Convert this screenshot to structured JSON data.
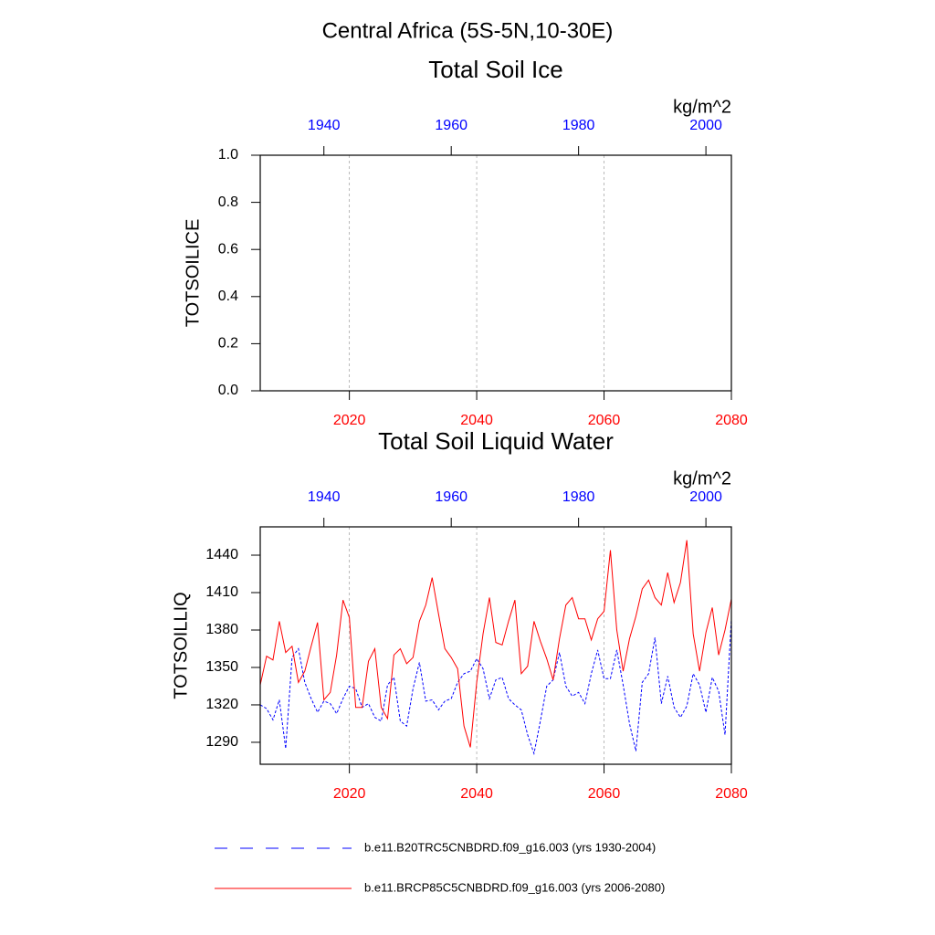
{
  "title": "Central Africa (5S-5N,10-30E)",
  "chart_data": [
    {
      "type": "line",
      "title": "Total Soil Ice",
      "units": "kg/m^2",
      "y_label": "TOTSOILICE",
      "xlim": [
        2006,
        2080
      ],
      "xticks": [
        2020,
        2040,
        2060,
        2080
      ],
      "xtick_color": "#ff0000",
      "x2lim": [
        1930,
        2004
      ],
      "x2ticks": [
        1940,
        1960,
        1980,
        2000
      ],
      "x2tick_color": "#0000ff",
      "ylim": [
        0,
        1
      ],
      "yticks": [
        {
          "value": 0,
          "label": "0.0"
        },
        {
          "value": 0.2,
          "label": "0.2"
        },
        {
          "value": 0.4,
          "label": "0.4"
        },
        {
          "value": 0.6,
          "label": "0.6"
        },
        {
          "value": 0.8,
          "label": "0.8"
        },
        {
          "value": 1,
          "label": "1.0"
        }
      ],
      "grid": true,
      "series": []
    },
    {
      "type": "line",
      "title": "Total Soil Liquid Water",
      "units": "kg/m^2",
      "y_label": "TOTSOILLIQ",
      "xlim": [
        2006,
        2080
      ],
      "xticks": [
        2020,
        2040,
        2060,
        2080
      ],
      "xtick_color": "#ff0000",
      "x2lim": [
        1930,
        2004
      ],
      "x2ticks": [
        1940,
        1960,
        1980,
        2000
      ],
      "x2tick_color": "#0000ff",
      "ylim": [
        1272.4,
        1462.7
      ],
      "yticks": [
        1290,
        1320,
        1350,
        1380,
        1410,
        1440
      ],
      "grid": true,
      "series": [
        {
          "name": "b.e11.B20TRC5CNBDRD.f09_g16.003 (yrs 1930-2004)",
          "color": "#0000ff",
          "dash": true,
          "axis": "x2",
          "x": [
            1930,
            1931,
            1932,
            1933,
            1934,
            1935,
            1936,
            1937,
            1938,
            1939,
            1940,
            1941,
            1942,
            1943,
            1944,
            1945,
            1946,
            1947,
            1948,
            1949,
            1950,
            1951,
            1952,
            1953,
            1954,
            1955,
            1956,
            1957,
            1958,
            1959,
            1960,
            1961,
            1962,
            1963,
            1964,
            1965,
            1966,
            1967,
            1968,
            1969,
            1970,
            1971,
            1972,
            1973,
            1974,
            1975,
            1976,
            1977,
            1978,
            1979,
            1980,
            1981,
            1982,
            1983,
            1984,
            1985,
            1986,
            1987,
            1988,
            1989,
            1990,
            1991,
            1992,
            1993,
            1994,
            1995,
            1996,
            1997,
            1998,
            1999,
            2000,
            2001,
            2002,
            2003,
            2004
          ],
          "values": [
            1320,
            1317,
            1308,
            1324,
            1285,
            1358,
            1365,
            1338,
            1325,
            1314,
            1323,
            1321,
            1313,
            1325,
            1335,
            1333,
            1318,
            1321,
            1310,
            1307,
            1336,
            1342,
            1307,
            1303,
            1333,
            1354,
            1323,
            1324,
            1316,
            1323,
            1325,
            1338,
            1345,
            1347,
            1357,
            1349,
            1325,
            1340,
            1342,
            1325,
            1320,
            1316,
            1296,
            1281,
            1307,
            1335,
            1340,
            1362,
            1335,
            1327,
            1330,
            1321,
            1345,
            1364,
            1341,
            1341,
            1364,
            1336,
            1305,
            1283,
            1338,
            1345,
            1374,
            1321,
            1343,
            1318,
            1310,
            1319,
            1345,
            1336,
            1314,
            1342,
            1331,
            1296,
            1389
          ]
        },
        {
          "name": "b.e11.BRCP85C5CNBDRD.f09_g16.003 (yrs 2006-2080)",
          "color": "#ff0000",
          "dash": false,
          "x": [
            2006,
            2007,
            2008,
            2009,
            2010,
            2011,
            2012,
            2013,
            2014,
            2015,
            2016,
            2017,
            2018,
            2019,
            2020,
            2021,
            2022,
            2023,
            2024,
            2025,
            2026,
            2027,
            2028,
            2029,
            2030,
            2031,
            2032,
            2033,
            2034,
            2035,
            2036,
            2037,
            2038,
            2039,
            2040,
            2041,
            2042,
            2043,
            2044,
            2045,
            2046,
            2047,
            2048,
            2049,
            2050,
            2051,
            2052,
            2053,
            2054,
            2055,
            2056,
            2057,
            2058,
            2059,
            2060,
            2061,
            2062,
            2063,
            2064,
            2065,
            2066,
            2067,
            2068,
            2069,
            2070,
            2071,
            2072,
            2073,
            2074,
            2075,
            2076,
            2077,
            2078,
            2079,
            2080
          ],
          "values": [
            1336,
            1359,
            1356,
            1387,
            1362,
            1367,
            1338,
            1347,
            1367,
            1386,
            1324,
            1330,
            1360,
            1404,
            1390,
            1318,
            1318,
            1355,
            1365,
            1318,
            1309,
            1360,
            1365,
            1353,
            1358,
            1387,
            1400,
            1422,
            1393,
            1365,
            1358,
            1349,
            1303,
            1286,
            1338,
            1377,
            1406,
            1370,
            1368,
            1387,
            1404,
            1345,
            1351,
            1387,
            1371,
            1357,
            1340,
            1373,
            1400,
            1406,
            1389,
            1389,
            1372,
            1389,
            1395,
            1444,
            1380,
            1347,
            1373,
            1391,
            1413,
            1420,
            1406,
            1400,
            1426,
            1402,
            1418,
            1452,
            1377,
            1347,
            1378,
            1398,
            1360,
            1380,
            1405
          ]
        }
      ]
    }
  ]
}
